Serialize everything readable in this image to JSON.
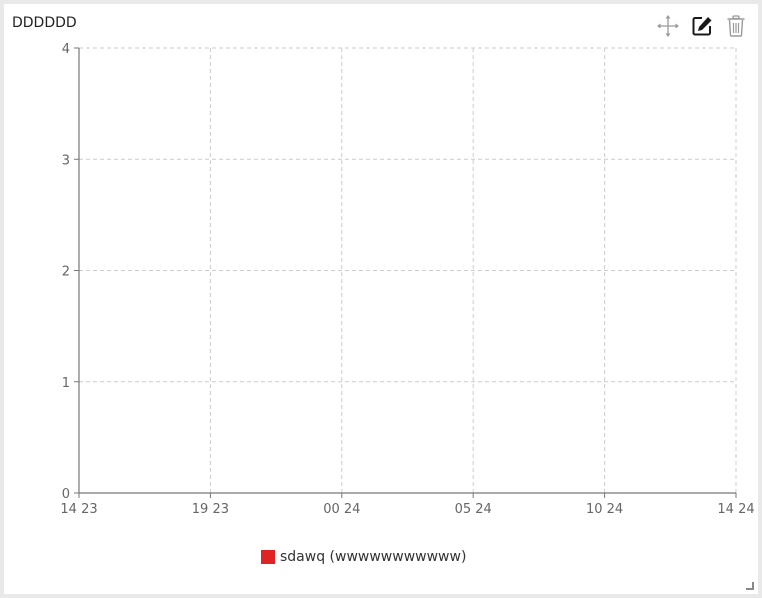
{
  "widget": {
    "title": "DDDDDD",
    "icons": {
      "move": "move-icon",
      "edit": "edit-icon",
      "delete": "trash-icon"
    }
  },
  "chart_data": {
    "type": "line",
    "x_ticks": [
      "14 23",
      "19 23",
      "00 24",
      "05 24",
      "10 24",
      "14 24"
    ],
    "y_ticks": [
      0,
      1,
      2,
      3,
      4
    ],
    "ylim": [
      0,
      4
    ],
    "grid": true,
    "legend_position": "bottom",
    "series": [
      {
        "name": "sdawq (wwwwwwwwwww)",
        "color": "#e02424",
        "values": []
      }
    ]
  }
}
